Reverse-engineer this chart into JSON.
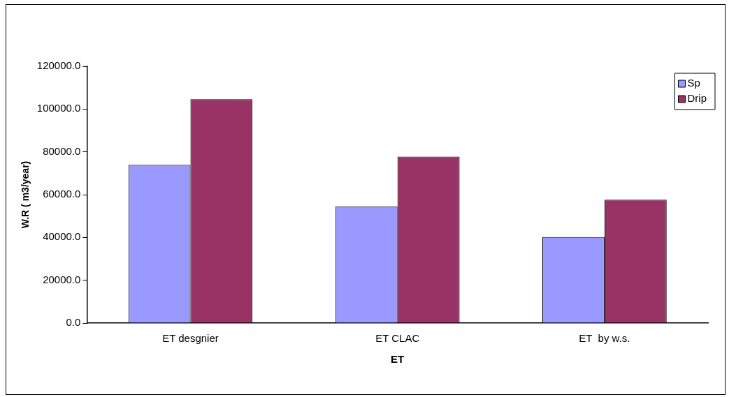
{
  "chart_data": {
    "type": "bar",
    "xlabel": "ET",
    "ylabel": "W.R ( m3/year)",
    "categories": [
      "ET desgnier",
      "ET CLAC",
      "ET  by w.s."
    ],
    "series": [
      {
        "name": "Sp",
        "color": "#9999ff",
        "values": [
          73900,
          54500,
          40200
        ]
      },
      {
        "name": "Drip",
        "color": "#993366",
        "values": [
          104600,
          77800,
          57600
        ]
      }
    ],
    "ylim": [
      0,
      120000
    ],
    "yticks": [
      {
        "value": 0,
        "label": "0.0"
      },
      {
        "value": 20000,
        "label": "20000.0"
      },
      {
        "value": 40000,
        "label": "40000.0"
      },
      {
        "value": 60000,
        "label": "60000.0"
      },
      {
        "value": 80000,
        "label": "80000.0"
      },
      {
        "value": 100000,
        "label": "100000.0"
      },
      {
        "value": 120000,
        "label": "120000.0"
      }
    ],
    "grid": false,
    "legend": "top right"
  }
}
